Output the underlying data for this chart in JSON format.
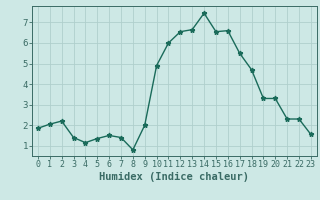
{
  "x": [
    0,
    1,
    2,
    3,
    4,
    5,
    6,
    7,
    8,
    9,
    10,
    11,
    12,
    13,
    14,
    15,
    16,
    17,
    18,
    19,
    20,
    21,
    22,
    23
  ],
  "y": [
    1.85,
    2.05,
    2.2,
    1.4,
    1.15,
    1.35,
    1.5,
    1.4,
    0.8,
    2.0,
    4.9,
    6.0,
    6.55,
    6.65,
    7.45,
    6.55,
    6.6,
    5.5,
    4.7,
    3.3,
    3.3,
    2.3,
    2.3,
    1.55
  ],
  "line_color": "#1a6b5a",
  "marker": "*",
  "marker_size": 3.5,
  "bg_color": "#cde8e5",
  "grid_color": "#b0cfcc",
  "axis_color": "#3a6b65",
  "tick_color": "#3a6b65",
  "xlabel": "Humidex (Indice chaleur)",
  "xlabel_fontsize": 7.5,
  "xtick_fontsize": 6,
  "ytick_fontsize": 6.5,
  "ylabel_ticks": [
    1,
    2,
    3,
    4,
    5,
    6,
    7
  ],
  "xlim": [
    -0.5,
    23.5
  ],
  "ylim": [
    0.5,
    7.8
  ],
  "linewidth": 1.0
}
